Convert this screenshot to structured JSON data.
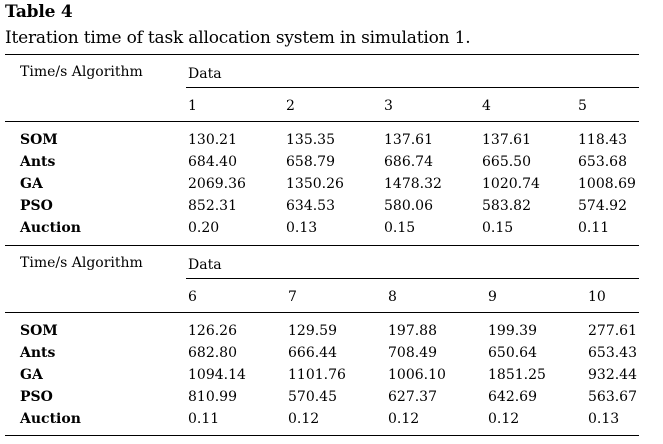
{
  "caption": {
    "label": "Table 4",
    "text": "Iteration time of task allocation system in simulation 1."
  },
  "blocks": [
    {
      "corner": "Time/s Algorithm",
      "group": "Data",
      "columns": [
        "1",
        "2",
        "3",
        "4",
        "5"
      ],
      "rows": [
        {
          "label": "SOM",
          "values": [
            "130.21",
            "135.35",
            "137.61",
            "137.61",
            "118.43"
          ]
        },
        {
          "label": "Ants",
          "values": [
            "684.40",
            "658.79",
            "686.74",
            "665.50",
            "653.68"
          ]
        },
        {
          "label": "GA",
          "values": [
            "2069.36",
            "1350.26",
            "1478.32",
            "1020.74",
            "1008.69"
          ]
        },
        {
          "label": "PSO",
          "values": [
            "852.31",
            "634.53",
            "580.06",
            "583.82",
            "574.92"
          ]
        },
        {
          "label": "Auction",
          "values": [
            "0.20",
            "0.13",
            "0.15",
            "0.15",
            "0.11"
          ]
        }
      ]
    },
    {
      "corner": "Time/s Algorithm",
      "group": "Data",
      "columns": [
        "6",
        "7",
        "8",
        "9",
        "10"
      ],
      "rows": [
        {
          "label": "SOM",
          "values": [
            "126.26",
            "129.59",
            "197.88",
            "199.39",
            "277.61"
          ]
        },
        {
          "label": "Ants",
          "values": [
            "682.80",
            "666.44",
            "708.49",
            "650.64",
            "653.43"
          ]
        },
        {
          "label": "GA",
          "values": [
            "1094.14",
            "1101.76",
            "1006.10",
            "1851.25",
            "932.44"
          ]
        },
        {
          "label": "PSO",
          "values": [
            "810.99",
            "570.45",
            "627.37",
            "642.69",
            "563.67"
          ]
        },
        {
          "label": "Auction",
          "values": [
            "0.11",
            "0.12",
            "0.12",
            "0.12",
            "0.13"
          ]
        }
      ]
    }
  ]
}
